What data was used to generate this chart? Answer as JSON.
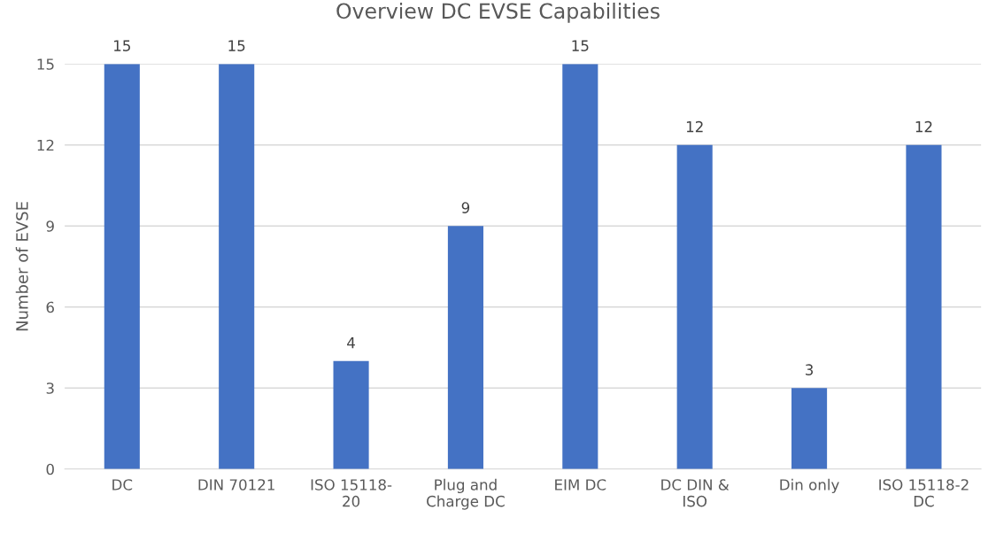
{
  "chart_data": {
    "type": "bar",
    "title": "Overview DC EVSE Capabilities",
    "ylabel": "Number of EVSE",
    "categories": [
      "DC",
      "DIN 70121",
      "ISO 15118-20",
      "Plug and Charge DC",
      "EIM DC",
      "DC DIN & ISO",
      "Din only",
      "ISO 15118-2 DC"
    ],
    "values": [
      15,
      15,
      4,
      9,
      15,
      12,
      3,
      12
    ],
    "color": "#4472c4",
    "ylim": [
      0,
      15
    ],
    "yticks": [
      0,
      3,
      6,
      9,
      12,
      15
    ],
    "grid": "y",
    "data_labels": true
  }
}
